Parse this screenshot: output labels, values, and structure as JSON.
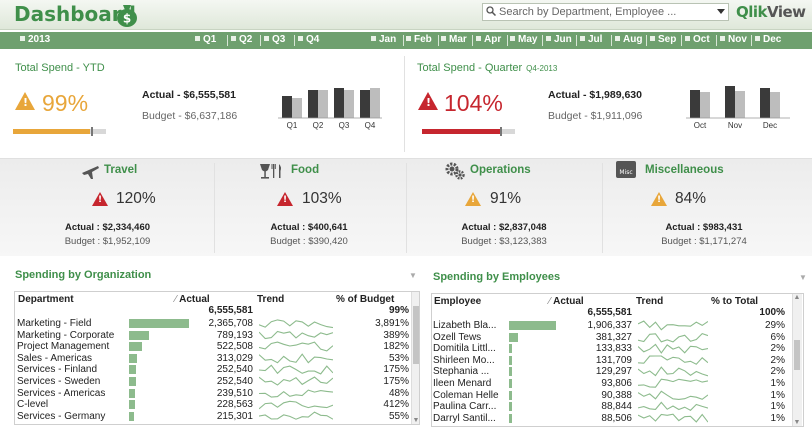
{
  "header": {
    "title": "Dashboard",
    "search_placeholder": "Search by Department, Employee ...",
    "brand_prefix": "Qlik",
    "brand_suffix": "View"
  },
  "filters": {
    "year": "2013",
    "quarters": [
      "Q1",
      "Q2",
      "Q3",
      "Q4"
    ],
    "months": [
      "Jan",
      "Feb",
      "Mar",
      "Apr",
      "May",
      "Jun",
      "Jul",
      "Aug",
      "Sep",
      "Oct",
      "Nov",
      "Dec"
    ]
  },
  "ytd": {
    "label": "Total Spend - YTD",
    "pct": "99%",
    "actual": "Actual - $6,555,581",
    "budget": "Budget - $6,637,186",
    "progress": 0.99,
    "status_color": "#e8a63a",
    "chart_categories": [
      "Q1",
      "Q2",
      "Q3",
      "Q4"
    ]
  },
  "quarter": {
    "label": "Total Spend - Quarter",
    "sublabel": "Q4-2013",
    "pct": "104%",
    "actual": "Actual - $1,989,630",
    "budget": "Budget - $1,911,096",
    "progress": 1.04,
    "status_color": "#c6262e",
    "chart_categories": [
      "Oct",
      "Nov",
      "Dec"
    ]
  },
  "categories": [
    {
      "title": "Travel",
      "icon": "airplane-icon",
      "pct": "120%",
      "status": "red",
      "actual": "Actual : $2,334,460",
      "budget": "Budget : $1,952,109"
    },
    {
      "title": "Food",
      "icon": "food-icon",
      "pct": "103%",
      "status": "red",
      "actual": "Actual : $400,641",
      "budget": "Budget : $390,420"
    },
    {
      "title": "Operations",
      "icon": "gears-icon",
      "pct": "91%",
      "status": "yellow",
      "actual": "Actual : $2,837,048",
      "budget": "Budget : $3,123,383"
    },
    {
      "title": "Miscellaneous",
      "icon": "misc-icon",
      "icon_text": "Misc",
      "pct": "84%",
      "status": "yellow",
      "actual": "Actual : $983,431",
      "budget": "Budget : $1,171,274"
    }
  ],
  "org_table": {
    "title": "Spending by Organization",
    "columns": [
      "Department",
      "Actual",
      "Trend",
      "% of Budget"
    ],
    "total_actual": "6,555,581",
    "total_pct": "99%",
    "rows": [
      {
        "name": "Marketing - Field",
        "actual": "2,365,708",
        "pct": "3,891%",
        "bar": 1.0
      },
      {
        "name": "Marketing - Corporate",
        "actual": "789,193",
        "pct": "389%",
        "bar": 0.33
      },
      {
        "name": "Project Management",
        "actual": "522,508",
        "pct": "182%",
        "bar": 0.22
      },
      {
        "name": "Sales - Americas",
        "actual": "313,029",
        "pct": "53%",
        "bar": 0.13
      },
      {
        "name": "Services - Finland",
        "actual": "252,540",
        "pct": "175%",
        "bar": 0.11
      },
      {
        "name": "Services - Sweden",
        "actual": "252,540",
        "pct": "175%",
        "bar": 0.11
      },
      {
        "name": "Services - Americas",
        "actual": "239,510",
        "pct": "48%",
        "bar": 0.1
      },
      {
        "name": "C-level",
        "actual": "228,563",
        "pct": "412%",
        "bar": 0.1
      },
      {
        "name": "Services - Germany",
        "actual": "215,301",
        "pct": "55%",
        "bar": 0.09
      }
    ]
  },
  "emp_table": {
    "title": "Spending by Employees",
    "columns": [
      "Employee",
      "Actual",
      "Trend",
      "% to Total"
    ],
    "total_actual": "6,555,581",
    "total_pct": "100%",
    "rows": [
      {
        "name": "Lizabeth Bla...",
        "actual": "1,906,337",
        "pct": "29%",
        "bar": 1.0
      },
      {
        "name": "Ozell Tews",
        "actual": "381,327",
        "pct": "6%",
        "bar": 0.2
      },
      {
        "name": "Domitila Littl...",
        "actual": "133,833",
        "pct": "2%",
        "bar": 0.07
      },
      {
        "name": "Shirleen Mo...",
        "actual": "131,709",
        "pct": "2%",
        "bar": 0.07
      },
      {
        "name": "Stephania ...",
        "actual": "129,297",
        "pct": "2%",
        "bar": 0.07
      },
      {
        "name": "Ileen Menard",
        "actual": "93,806",
        "pct": "1%",
        "bar": 0.05
      },
      {
        "name": "Coleman Helle",
        "actual": "90,388",
        "pct": "1%",
        "bar": 0.05
      },
      {
        "name": "Paulina Carr...",
        "actual": "88,844",
        "pct": "1%",
        "bar": 0.05
      },
      {
        "name": "Darryl Santil...",
        "actual": "88,506",
        "pct": "1%",
        "bar": 0.05
      }
    ]
  }
}
